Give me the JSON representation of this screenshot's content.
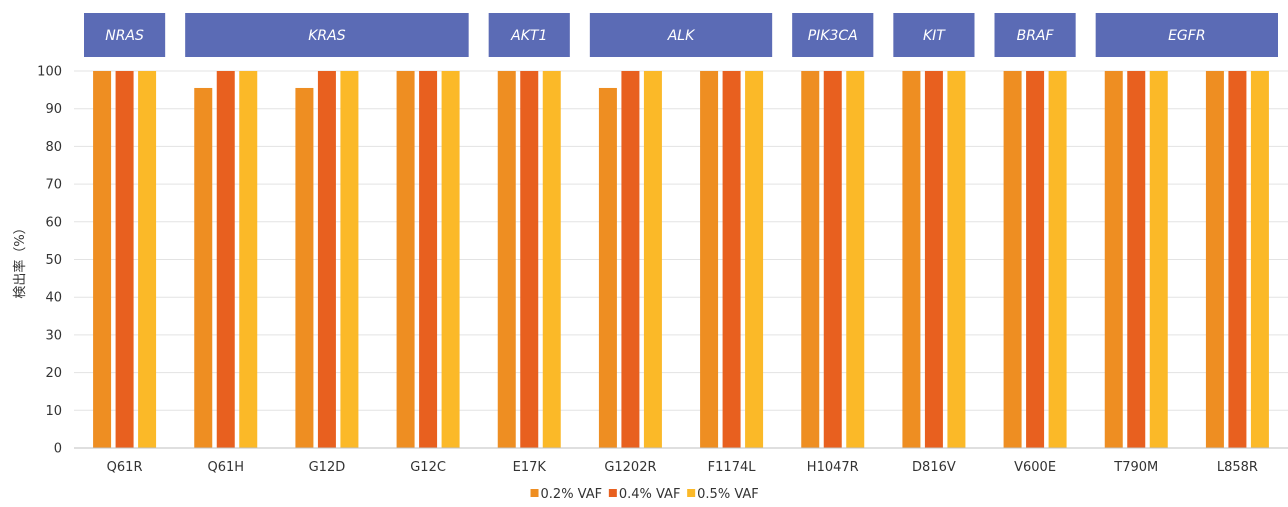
{
  "chart_data": {
    "type": "bar",
    "ylabel": "検出率（%）",
    "ylim": [
      0,
      100
    ],
    "yticks": [
      0,
      10,
      20,
      30,
      40,
      50,
      60,
      70,
      80,
      90,
      100
    ],
    "grid": true,
    "legend_position": "bottom-center",
    "categories": [
      "Q61R",
      "Q61H",
      "G12D",
      "G12C",
      "E17K",
      "G1202R",
      "F1174L",
      "H1047R",
      "D816V",
      "V600E",
      "T790M",
      "L858R"
    ],
    "series": [
      {
        "name": "0.2% VAF",
        "color": "#EE8E22",
        "values": [
          100,
          95.5,
          95.5,
          100,
          100,
          95.5,
          100,
          100,
          100,
          100,
          100,
          100
        ]
      },
      {
        "name": "0.4% VAF",
        "color": "#E8601F",
        "values": [
          100,
          100,
          100,
          100,
          100,
          100,
          100,
          100,
          100,
          100,
          100,
          100
        ]
      },
      {
        "name": "0.5% VAF",
        "color": "#FBB928",
        "values": [
          100,
          100,
          100,
          100,
          100,
          100,
          100,
          100,
          100,
          100,
          100,
          100
        ]
      }
    ],
    "gene_groups": [
      {
        "label": "NRAS",
        "start": 0,
        "end": 0
      },
      {
        "label": "KRAS",
        "start": 1,
        "end": 3
      },
      {
        "label": "AKT1",
        "start": 4,
        "end": 4
      },
      {
        "label": "ALK",
        "start": 5,
        "end": 6
      },
      {
        "label": "PIK3CA",
        "start": 7,
        "end": 7
      },
      {
        "label": "KIT",
        "start": 8,
        "end": 8
      },
      {
        "label": "BRAF",
        "start": 9,
        "end": 9
      },
      {
        "label": "EGFR",
        "start": 10,
        "end": 11
      }
    ],
    "gene_header_color": "#5B6BB5",
    "grid_color": "#E3E3E3",
    "axis_color": "#BFBFBF"
  }
}
